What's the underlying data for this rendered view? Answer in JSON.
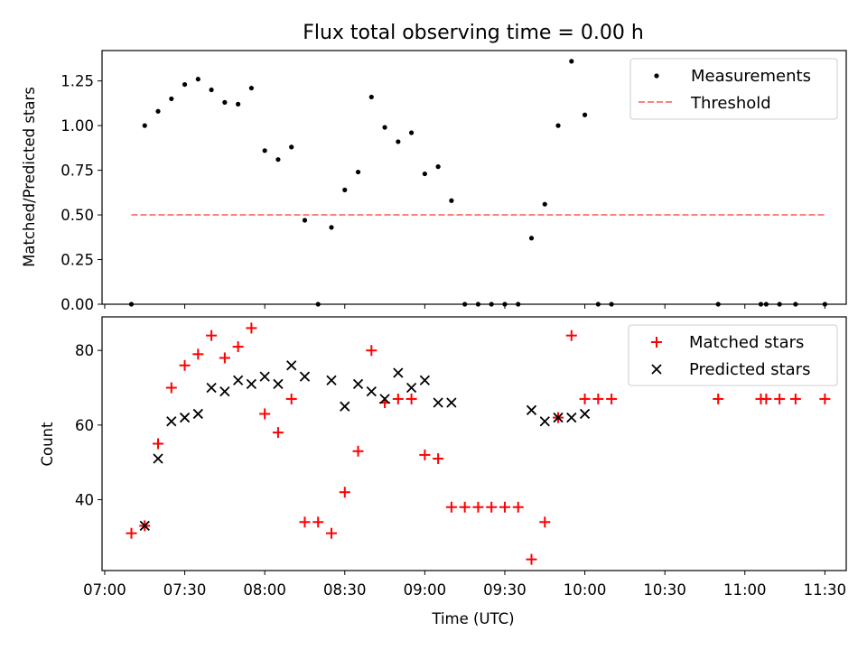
{
  "chart_data": [
    {
      "type": "scatter",
      "title": "Flux total observing time = 0.00 h",
      "xlabel": "",
      "ylabel": "Matched/Predicted stars",
      "ylim": [
        0.0,
        1.42
      ],
      "yticks": [
        "0.00",
        "0.25",
        "0.50",
        "0.75",
        "1.00",
        "1.25"
      ],
      "grid": false,
      "legend_position": "top-right",
      "series": [
        {
          "name": "Measurements",
          "marker": "dot",
          "color": "#000000",
          "x": [
            "07:10",
            "07:15",
            "07:20",
            "07:25",
            "07:30",
            "07:35",
            "07:40",
            "07:45",
            "07:50",
            "07:55",
            "08:00",
            "08:05",
            "08:10",
            "08:15",
            "08:20",
            "08:25",
            "08:30",
            "08:35",
            "08:40",
            "08:45",
            "08:50",
            "08:55",
            "09:00",
            "09:05",
            "09:10",
            "09:15",
            "09:20",
            "09:25",
            "09:30",
            "09:35",
            "09:40",
            "09:45",
            "09:50",
            "09:55",
            "10:00",
            "10:05",
            "10:10",
            "10:50",
            "11:06",
            "11:08",
            "11:13",
            "11:19",
            "11:30"
          ],
          "y": [
            0.0,
            1.0,
            1.08,
            1.15,
            1.23,
            1.26,
            1.2,
            1.13,
            1.12,
            1.21,
            0.86,
            0.81,
            0.88,
            0.47,
            0.0,
            0.43,
            0.64,
            0.74,
            1.16,
            0.99,
            0.91,
            0.96,
            0.73,
            0.77,
            0.58,
            0.0,
            0.0,
            0.0,
            0.0,
            0.0,
            0.37,
            0.56,
            1.0,
            1.36,
            1.06,
            0.0,
            0.0,
            0.0,
            0.0,
            0.0,
            0.0,
            0.0,
            0.0
          ]
        },
        {
          "name": "Threshold",
          "style": "dashed",
          "color": "#ff7f7f",
          "x": [
            "07:10",
            "11:30"
          ],
          "y": [
            0.5,
            0.5
          ]
        }
      ]
    },
    {
      "type": "scatter",
      "title": "",
      "xlabel": "Time (UTC)",
      "ylabel": "Count",
      "ylim": [
        21,
        89
      ],
      "yticks": [
        "40",
        "60",
        "80"
      ],
      "xlim": [
        "06:59",
        "11:38"
      ],
      "xticks": [
        "07:00",
        "07:30",
        "08:00",
        "08:30",
        "09:00",
        "09:30",
        "10:00",
        "10:30",
        "11:00",
        "11:30"
      ],
      "grid": false,
      "legend_position": "top-right",
      "series": [
        {
          "name": "Matched stars",
          "marker": "plus",
          "color": "#ff0000",
          "x": [
            "07:10",
            "07:15",
            "07:20",
            "07:25",
            "07:30",
            "07:35",
            "07:40",
            "07:45",
            "07:50",
            "07:55",
            "08:00",
            "08:05",
            "08:10",
            "08:15",
            "08:20",
            "08:25",
            "08:30",
            "08:35",
            "08:40",
            "08:45",
            "08:50",
            "08:55",
            "09:00",
            "09:05",
            "09:10",
            "09:15",
            "09:20",
            "09:25",
            "09:30",
            "09:35",
            "09:40",
            "09:45",
            "09:50",
            "09:55",
            "10:00",
            "10:05",
            "10:10",
            "10:50",
            "11:06",
            "11:08",
            "11:13",
            "11:19",
            "11:30"
          ],
          "y": [
            31,
            33,
            55,
            70,
            76,
            79,
            84,
            78,
            81,
            86,
            63,
            58,
            67,
            34,
            34,
            31,
            42,
            53,
            80,
            66,
            67,
            67,
            52,
            51,
            38,
            38,
            38,
            38,
            38,
            38,
            24,
            34,
            62,
            84,
            67,
            67,
            67,
            67,
            67,
            67,
            67,
            67,
            67
          ]
        },
        {
          "name": "Predicted stars",
          "marker": "x",
          "color": "#000000",
          "x": [
            "07:15",
            "07:20",
            "07:25",
            "07:30",
            "07:35",
            "07:40",
            "07:45",
            "07:50",
            "07:55",
            "08:00",
            "08:05",
            "08:10",
            "08:15",
            "08:25",
            "08:30",
            "08:35",
            "08:40",
            "08:45",
            "08:50",
            "08:55",
            "09:00",
            "09:05",
            "09:10",
            "09:40",
            "09:45",
            "09:50",
            "09:55",
            "10:00"
          ],
          "y": [
            33,
            51,
            61,
            62,
            63,
            70,
            69,
            72,
            71,
            73,
            71,
            76,
            73,
            72,
            65,
            71,
            69,
            67,
            74,
            70,
            72,
            66,
            66,
            64,
            61,
            62,
            62,
            63
          ]
        }
      ]
    }
  ]
}
